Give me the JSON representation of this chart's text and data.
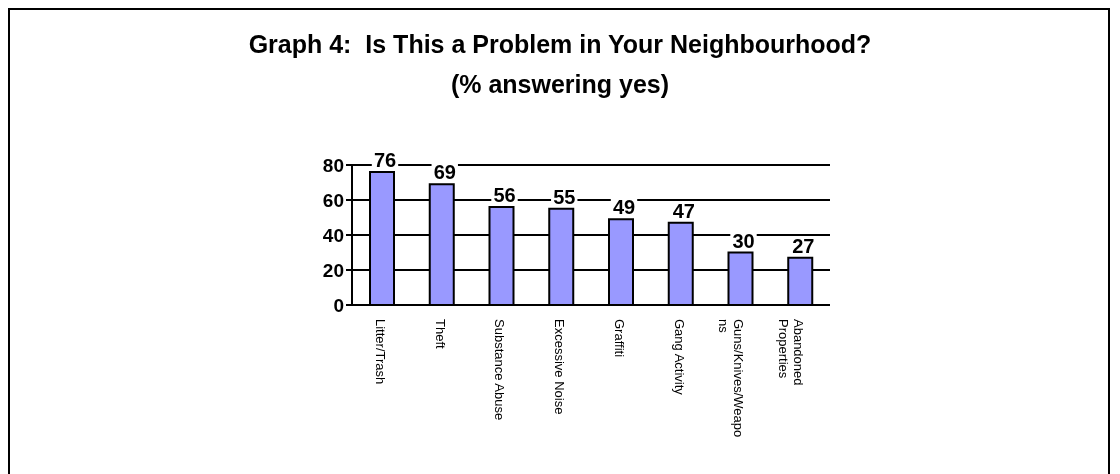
{
  "chart_data": {
    "type": "bar",
    "title": "Graph 4:  Is This a Problem in Your Neighbourhood?",
    "subtitle": "(% answering yes)",
    "categories": [
      "Litter/Trash",
      "Theft",
      "Substance Abuse",
      "Excessive Noise",
      "Graffiti",
      "Gang Activity",
      "Guns/Knives/Weapons",
      "Abandoned Properties"
    ],
    "values": [
      76,
      69,
      56,
      55,
      49,
      47,
      30,
      27
    ],
    "color": "#9999ff",
    "ylim": [
      0,
      80
    ],
    "yticks": [
      0,
      20,
      40,
      60,
      80
    ],
    "grid": "y",
    "data_labels": true
  }
}
